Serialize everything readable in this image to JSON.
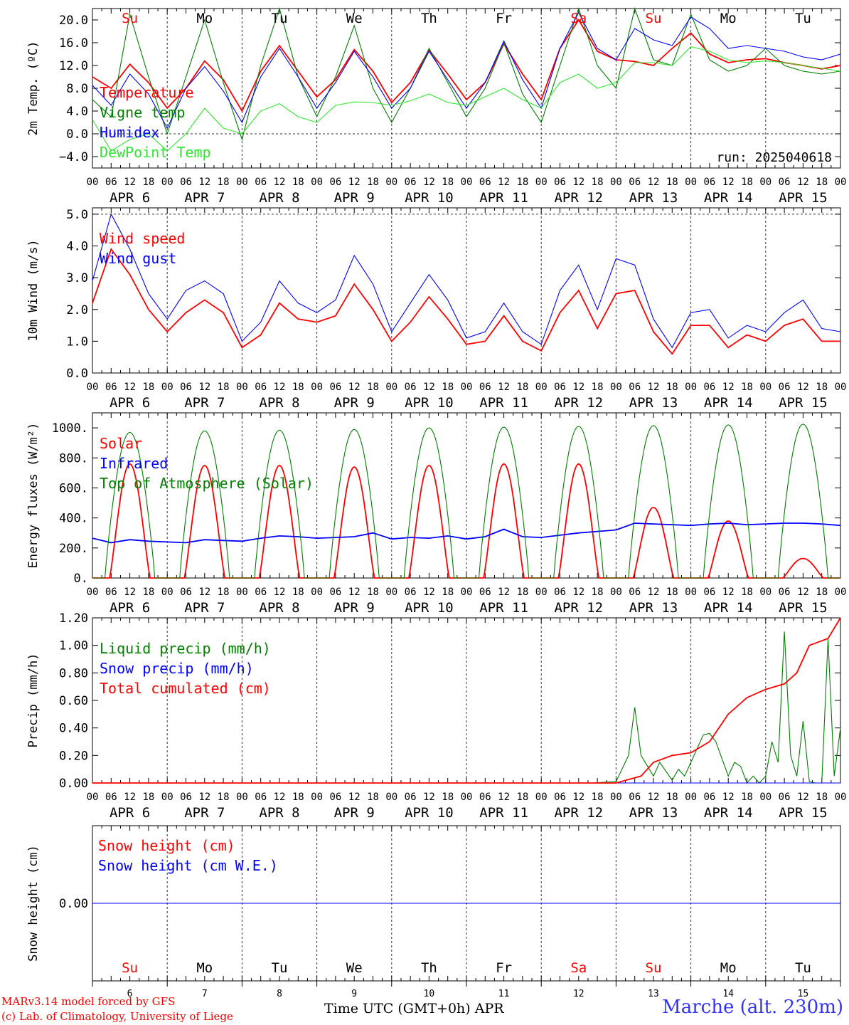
{
  "colors": {
    "red": "#ff0000",
    "green": "#007f00",
    "blue": "#0000ff",
    "lime": "#2ee82e",
    "grid": "#333333"
  },
  "axis": {
    "hour_ticks": [
      "00",
      "06",
      "12",
      "18"
    ],
    "end_tick": "00",
    "dates": [
      "APR  6",
      "APR  7",
      "APR  8",
      "APR  9",
      "APR 10",
      "APR 11",
      "APR 12",
      "APR 13",
      "APR 14",
      "APR 15"
    ],
    "day_names": [
      "Su",
      "Mo",
      "Tu",
      "We",
      "Th",
      "Fr",
      "Sa",
      "Su",
      "Mo",
      "Tu"
    ],
    "weekend_days": [
      0,
      6,
      7
    ],
    "day_numbers": [
      "6",
      "7",
      "8",
      "9",
      "10",
      "11",
      "12",
      "13",
      "14",
      "15"
    ]
  },
  "footer": {
    "model": "MARv3.14 model forced by GFS",
    "lab": "(c) Lab. of Climatology, University of Liege",
    "time_label": "Time UTC (GMT+0h) APR",
    "station": "Marche (alt. 230m)"
  },
  "chart_data": [
    {
      "type": "line",
      "ylabel": "2m Temp. (ºC)",
      "ylim": [
        -6,
        22
      ],
      "yticks": [
        "20.0",
        "16.0",
        "12.0",
        "8.0",
        "4.0",
        "0.0",
        "−4.0"
      ],
      "ytick_values": [
        20,
        16,
        12,
        8,
        4,
        0,
        -4
      ],
      "dashed_levels": [
        0
      ],
      "annotation": "run: 2025040618",
      "series": [
        {
          "name": "Temperature",
          "color": "red",
          "x_hours": [
            0,
            6,
            12,
            18,
            24,
            30,
            36,
            42,
            48,
            54,
            60,
            66,
            72,
            78,
            84,
            90,
            96,
            102,
            108,
            114,
            120,
            126,
            132,
            138,
            144,
            150,
            156,
            162,
            168,
            174,
            180,
            186,
            192,
            198,
            204,
            210,
            216,
            222,
            228,
            234,
            240
          ],
          "values": [
            10,
            8,
            12.2,
            9,
            4.5,
            8,
            12.8,
            9.5,
            4,
            11,
            15.5,
            11,
            6.5,
            9.5,
            14.8,
            11,
            5.5,
            9,
            14.7,
            10.5,
            6,
            9,
            15.8,
            10.5,
            6,
            15,
            20,
            14.5,
            13,
            12.7,
            12,
            15,
            17.7,
            14,
            12.5,
            13,
            13.2,
            12.5,
            12,
            11.4,
            12
          ]
        },
        {
          "name": "Vigne temp",
          "color": "green",
          "x_hours": [
            0,
            6,
            12,
            18,
            24,
            30,
            36,
            42,
            48,
            54,
            60,
            66,
            72,
            78,
            84,
            90,
            96,
            102,
            108,
            114,
            120,
            126,
            132,
            138,
            144,
            150,
            156,
            162,
            168,
            174,
            180,
            186,
            192,
            198,
            204,
            210,
            216,
            222,
            228,
            234,
            240
          ],
          "values": [
            6,
            3,
            21,
            10,
            0,
            10,
            20,
            9,
            -1,
            12,
            22,
            10,
            3,
            10,
            19,
            8,
            2,
            8,
            15,
            9,
            3,
            8,
            16,
            7,
            2,
            12,
            22,
            12,
            8,
            22,
            13,
            12,
            21,
            13,
            11,
            12,
            15,
            12,
            11,
            10.5,
            11
          ]
        },
        {
          "name": "Humidex",
          "color": "blue",
          "x_hours": [
            0,
            6,
            12,
            18,
            24,
            30,
            36,
            42,
            48,
            54,
            60,
            66,
            72,
            78,
            84,
            90,
            96,
            102,
            108,
            114,
            120,
            126,
            132,
            138,
            144,
            150,
            156,
            162,
            168,
            174,
            180,
            186,
            192,
            198,
            204,
            210,
            216,
            222,
            228,
            234,
            240
          ],
          "values": [
            8.5,
            5,
            10.5,
            7,
            1,
            8,
            11.8,
            7.5,
            2,
            10,
            15,
            10,
            4.5,
            9,
            14.5,
            10,
            4.5,
            8,
            14.5,
            9.5,
            4.5,
            9,
            16.3,
            9.5,
            4.5,
            15,
            21.3,
            15,
            13,
            18.5,
            16.5,
            15.5,
            20.5,
            18.5,
            15,
            15.5,
            15,
            14.5,
            13.5,
            13,
            14
          ]
        },
        {
          "name": "DewPoint Temp",
          "color": "lime",
          "x_hours": [
            0,
            6,
            12,
            18,
            24,
            30,
            36,
            42,
            48,
            54,
            60,
            66,
            72,
            78,
            84,
            90,
            96,
            102,
            108,
            114,
            120,
            126,
            132,
            138,
            144,
            150,
            156,
            162,
            168,
            174,
            180,
            186,
            192,
            198,
            204,
            210,
            216,
            222,
            228,
            234,
            240
          ],
          "values": [
            2.5,
            -3,
            -1,
            0,
            -3,
            0,
            4.5,
            1,
            0,
            4,
            5.3,
            3,
            2,
            5,
            5.6,
            5.5,
            5,
            5.8,
            7,
            5.5,
            5,
            6.5,
            8,
            6,
            4.5,
            9,
            10.5,
            8,
            9,
            12.5,
            12.5,
            12,
            15.3,
            14.5,
            13,
            12.5,
            12.8,
            12.5,
            12,
            11.5,
            11
          ]
        }
      ]
    },
    {
      "type": "line",
      "ylabel": "10m Wind (m/s)",
      "ylim": [
        0,
        5.2
      ],
      "yticks": [
        "5.0",
        "4.0",
        "3.0",
        "2.0",
        "1.0",
        "0.0"
      ],
      "ytick_values": [
        5,
        4,
        3,
        2,
        1,
        0
      ],
      "dashed_levels": [
        5
      ],
      "series": [
        {
          "name": "Wind speed",
          "color": "red",
          "x_hours": [
            0,
            6,
            12,
            18,
            24,
            30,
            36,
            42,
            48,
            54,
            60,
            66,
            72,
            78,
            84,
            90,
            96,
            102,
            108,
            114,
            120,
            126,
            132,
            138,
            144,
            150,
            156,
            162,
            168,
            174,
            180,
            186,
            192,
            198,
            204,
            210,
            216,
            222,
            228,
            234,
            240
          ],
          "values": [
            2.2,
            3.9,
            3.1,
            2.0,
            1.3,
            1.9,
            2.3,
            1.9,
            0.8,
            1.2,
            2.2,
            1.7,
            1.6,
            1.8,
            2.8,
            2.0,
            1.0,
            1.6,
            2.4,
            1.7,
            0.9,
            1.0,
            1.8,
            1.0,
            0.7,
            1.9,
            2.6,
            1.4,
            2.5,
            2.6,
            1.3,
            0.6,
            1.5,
            1.5,
            0.8,
            1.2,
            1.0,
            1.5,
            1.7,
            1.0,
            1.0
          ]
        },
        {
          "name": "Wind gust",
          "color": "blue",
          "x_hours": [
            0,
            6,
            12,
            18,
            24,
            30,
            36,
            42,
            48,
            54,
            60,
            66,
            72,
            78,
            84,
            90,
            96,
            102,
            108,
            114,
            120,
            126,
            132,
            138,
            144,
            150,
            156,
            162,
            168,
            174,
            180,
            186,
            192,
            198,
            204,
            210,
            216,
            222,
            228,
            234,
            240
          ],
          "values": [
            2.9,
            5.0,
            3.9,
            2.5,
            1.7,
            2.6,
            2.9,
            2.5,
            1.0,
            1.6,
            2.9,
            2.2,
            1.9,
            2.3,
            3.7,
            2.8,
            1.3,
            2.2,
            3.1,
            2.3,
            1.1,
            1.3,
            2.2,
            1.3,
            0.9,
            2.6,
            3.4,
            2.0,
            3.6,
            3.4,
            1.7,
            0.8,
            1.9,
            2.0,
            1.1,
            1.5,
            1.3,
            1.9,
            2.3,
            1.4,
            1.3
          ]
        }
      ]
    },
    {
      "type": "line",
      "ylabel": "Energy fluxes (W/m²)",
      "ylim": [
        0,
        1100
      ],
      "yticks": [
        "1000.",
        "800.",
        "600.",
        "400.",
        "200.",
        "0."
      ],
      "ytick_values": [
        1000,
        800,
        600,
        400,
        200,
        0
      ],
      "series": [
        {
          "name": "Solar",
          "color": "red",
          "day_peaks": [
            760,
            750,
            750,
            740,
            750,
            760,
            760,
            470,
            380,
            130
          ]
        },
        {
          "name": "Infrared",
          "color": "blue",
          "x_hours": [
            0,
            6,
            12,
            18,
            24,
            30,
            36,
            42,
            48,
            54,
            60,
            66,
            72,
            78,
            84,
            90,
            96,
            102,
            108,
            114,
            120,
            126,
            132,
            138,
            144,
            150,
            156,
            162,
            168,
            174,
            180,
            186,
            192,
            198,
            204,
            210,
            216,
            222,
            228,
            234,
            240
          ],
          "values": [
            265,
            235,
            255,
            245,
            240,
            235,
            255,
            250,
            245,
            265,
            280,
            275,
            265,
            270,
            275,
            300,
            260,
            270,
            265,
            280,
            260,
            275,
            325,
            275,
            270,
            285,
            300,
            310,
            320,
            365,
            360,
            355,
            350,
            360,
            365,
            355,
            360,
            365,
            365,
            360,
            350
          ]
        },
        {
          "name": "Top of Atmosphere (Solar)",
          "color": "green",
          "day_peaks": [
            970,
            980,
            985,
            990,
            1000,
            1005,
            1010,
            1015,
            1020,
            1025
          ]
        }
      ]
    },
    {
      "type": "line",
      "ylabel": "Precip (mm/h)",
      "ylim": [
        0,
        1.2
      ],
      "yticks": [
        "1.20",
        "1.00",
        "0.80",
        "0.60",
        "0.40",
        "0.20",
        "0.00"
      ],
      "ytick_values": [
        1.2,
        1.0,
        0.8,
        0.6,
        0.4,
        0.2,
        0.0
      ],
      "series": [
        {
          "name": "Liquid precip (mm/h)",
          "color": "green",
          "x_hours": [
            0,
            160,
            168,
            172,
            174,
            176,
            180,
            182,
            186,
            188,
            190,
            192,
            194,
            196,
            198,
            200,
            204,
            206,
            208,
            210,
            212,
            214,
            216,
            218,
            220,
            222,
            224,
            226,
            228,
            230,
            232,
            234,
            236,
            238,
            240
          ],
          "values": [
            0,
            0,
            0.01,
            0.2,
            0.55,
            0.2,
            0.05,
            0.15,
            0.02,
            0.1,
            0.05,
            0.15,
            0.25,
            0.35,
            0.36,
            0.3,
            0.05,
            0.15,
            0.12,
            0.0,
            0.05,
            0.0,
            0.05,
            0.3,
            0.15,
            1.1,
            0.2,
            0.05,
            0.45,
            0.01,
            0.0,
            0.0,
            1.05,
            0.05,
            0.4
          ]
        },
        {
          "name": "Snow precip (mm/h)",
          "color": "blue",
          "x_hours": [
            0,
            240
          ],
          "values": [
            0,
            0
          ]
        },
        {
          "name": "Total cumulated (cm)",
          "color": "red",
          "x_hours": [
            0,
            168,
            176,
            180,
            186,
            192,
            198,
            204,
            210,
            216,
            222,
            226,
            230,
            236,
            240
          ],
          "values": [
            0,
            0,
            0.05,
            0.15,
            0.2,
            0.22,
            0.3,
            0.5,
            0.62,
            0.68,
            0.72,
            0.8,
            1.0,
            1.05,
            1.2
          ]
        }
      ]
    },
    {
      "type": "line",
      "ylabel": "Snow height (cm)",
      "ylim": [
        -1,
        1
      ],
      "yticks": [
        "0.00"
      ],
      "ytick_values": [
        0
      ],
      "series": [
        {
          "name": "Snow height (cm)",
          "color": "red",
          "x_hours": [
            0,
            240
          ],
          "values": [
            0,
            0
          ]
        },
        {
          "name": "Snow height (cm W.E.)",
          "color": "blue",
          "x_hours": [
            0,
            240
          ],
          "values": [
            0,
            0
          ]
        }
      ]
    }
  ]
}
